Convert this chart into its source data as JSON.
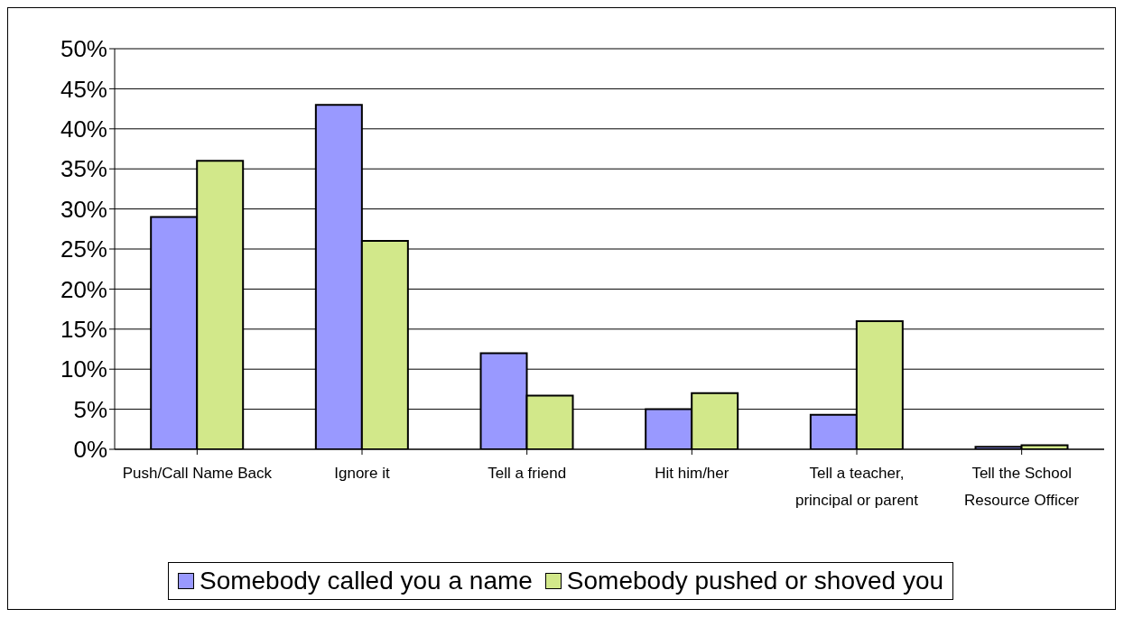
{
  "chart_data": {
    "type": "bar",
    "categories": [
      "Push/Call Name Back",
      "Ignore it",
      "Tell a friend",
      "Hit him/her",
      "Tell a teacher, principal or parent",
      "Tell the School Resource Officer"
    ],
    "series": [
      {
        "name": "Somebody called you a name",
        "color": "#9999ff",
        "values": [
          29,
          43,
          12,
          5,
          4.3,
          0.3
        ]
      },
      {
        "name": "Somebody pushed or shoved you",
        "color": "#d2e88a",
        "values": [
          36,
          26,
          6.7,
          7,
          16,
          0.5
        ]
      }
    ],
    "ylim": [
      0,
      50
    ],
    "yticks": [
      {
        "value": 0,
        "label": "0%"
      },
      {
        "value": 5,
        "label": "5%"
      },
      {
        "value": 10,
        "label": "10%"
      },
      {
        "value": 15,
        "label": "15%"
      },
      {
        "value": 20,
        "label": "20%"
      },
      {
        "value": 25,
        "label": "25%"
      },
      {
        "value": 30,
        "label": "30%"
      },
      {
        "value": 35,
        "label": "35%"
      },
      {
        "value": 40,
        "label": "40%"
      },
      {
        "value": 45,
        "label": "45%"
      },
      {
        "value": 50,
        "label": "50%"
      }
    ],
    "grid": "y",
    "legend": "bottom"
  }
}
